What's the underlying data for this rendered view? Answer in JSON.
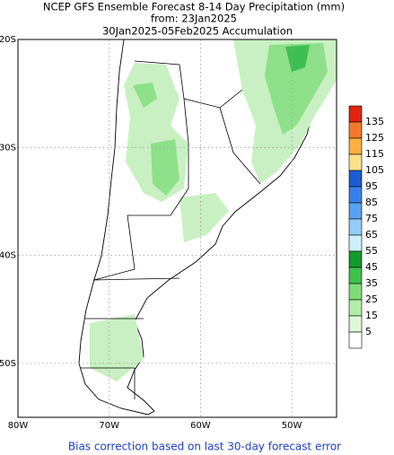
{
  "title": [
    "NCEP GFS Ensemble Forecast 8-14 Day Precipitation (mm)",
    "from: 23Jan2025",
    "30Jan2025-05Feb2025 Accumulation"
  ],
  "lat_labels": [
    "20S",
    "30S",
    "40S",
    "50S"
  ],
  "lon_labels": [
    "80W",
    "70W",
    "60W",
    "50W"
  ],
  "legend": {
    "labels": [
      135,
      125,
      115,
      105,
      95,
      85,
      75,
      65,
      55,
      45,
      35,
      25,
      15,
      5
    ],
    "colors": [
      "#e0240f",
      "#f5782a",
      "#fbb040",
      "#fbe28a",
      "#1c5cd0",
      "#3a80ea",
      "#5aa2f0",
      "#93ccf6",
      "#cdf1fb",
      "#159a2e",
      "#3ec24c",
      "#7fdc78",
      "#b4eca9",
      "#e0f8da",
      "#ffffff"
    ]
  },
  "footer": "Bias correction based on last 30-day forecast error"
}
